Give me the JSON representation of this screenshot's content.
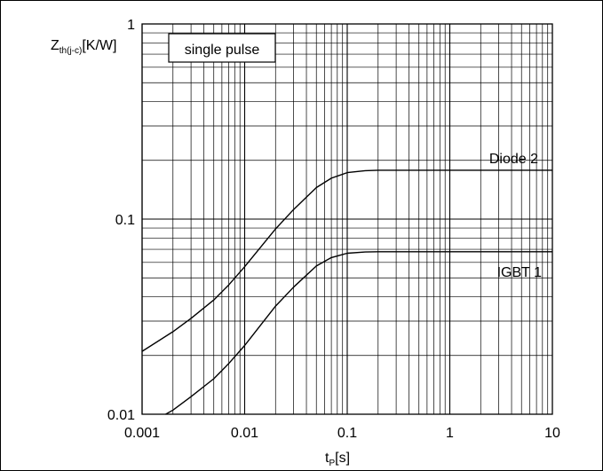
{
  "chart_data": {
    "type": "line",
    "x_scale": "log",
    "y_scale": "log",
    "xlim": [
      0.001,
      10
    ],
    "ylim": [
      0.01,
      1
    ],
    "grid": true,
    "xlabel": {
      "main": "t",
      "sub": "P",
      "suffix": "[s]"
    },
    "ylabel": {
      "main": "Z",
      "sub": "th(j-c)",
      "suffix": "[K/W]"
    },
    "x_ticks": [
      {
        "value": 0.001,
        "label": "0.001"
      },
      {
        "value": 0.01,
        "label": "0.01"
      },
      {
        "value": 0.1,
        "label": "0.1"
      },
      {
        "value": 1,
        "label": "1"
      },
      {
        "value": 10,
        "label": "10"
      }
    ],
    "y_ticks": [
      {
        "value": 0.01,
        "label": "0.01"
      },
      {
        "value": 0.1,
        "label": "0.1"
      },
      {
        "value": 1,
        "label": "1"
      }
    ],
    "annotation": "single pulse",
    "series": [
      {
        "name": "Diode 2",
        "x": [
          0.001,
          0.002,
          0.003,
          0.005,
          0.007,
          0.01,
          0.015,
          0.02,
          0.03,
          0.05,
          0.07,
          0.1,
          0.15,
          0.2,
          0.3,
          0.5,
          1,
          2,
          5,
          10
        ],
        "y": [
          0.021,
          0.0265,
          0.031,
          0.0385,
          0.046,
          0.057,
          0.074,
          0.089,
          0.112,
          0.145,
          0.162,
          0.173,
          0.177,
          0.178,
          0.178,
          0.178,
          0.178,
          0.178,
          0.178,
          0.178
        ]
      },
      {
        "name": "IGBT 1",
        "x": [
          0.0017,
          0.002,
          0.003,
          0.005,
          0.007,
          0.01,
          0.015,
          0.02,
          0.03,
          0.05,
          0.07,
          0.1,
          0.15,
          0.2,
          0.3,
          0.5,
          1,
          2,
          5,
          10
        ],
        "y": [
          0.01,
          0.0105,
          0.0123,
          0.0152,
          0.0182,
          0.0225,
          0.0295,
          0.0358,
          0.0448,
          0.0575,
          0.0635,
          0.0668,
          0.0678,
          0.068,
          0.068,
          0.068,
          0.068,
          0.068,
          0.068,
          0.068
        ]
      }
    ]
  }
}
